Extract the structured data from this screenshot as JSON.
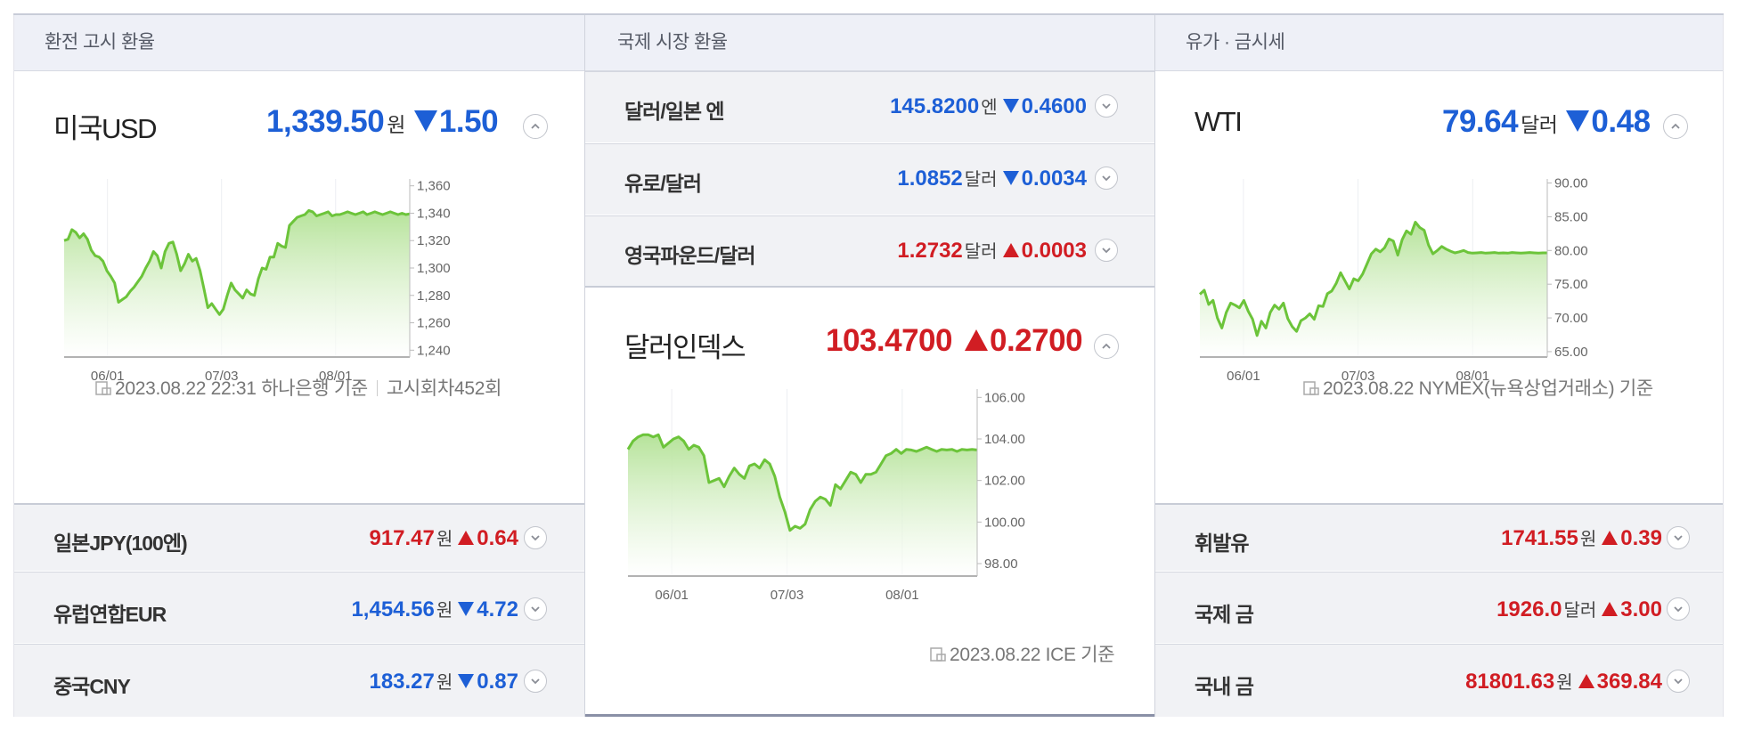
{
  "colors": {
    "up": "#d11d23",
    "down": "#1d5fd6",
    "line": "#6cc43a",
    "fill_top": "#b6e39a",
    "fill_bottom": "#ffffff"
  },
  "icons": {
    "expand": "chevron-up-icon",
    "collapse": "chevron-down-icon",
    "source": "document-icon"
  },
  "col1": {
    "header": "환전 고시 환율",
    "main": {
      "name": "미국USD",
      "price": "1,339.50",
      "unit": "원",
      "change": "1.50",
      "direction": "down"
    },
    "footnote": {
      "date": "2023.08.22 22:31 하나은행 기준",
      "extra": "고시회차452회"
    },
    "rows": [
      {
        "name": "일본JPY(100엔)",
        "price": "917.47",
        "unit": "원",
        "change": "0.64",
        "direction": "up"
      },
      {
        "name": "유럽연합EUR",
        "price": "1,454.56",
        "unit": "원",
        "change": "4.72",
        "direction": "down"
      },
      {
        "name": "중국CNY",
        "price": "183.27",
        "unit": "원",
        "change": "0.87",
        "direction": "down"
      }
    ]
  },
  "col2": {
    "header": "국제 시장 환율",
    "rows": [
      {
        "name": "달러/일본 엔",
        "price": "145.8200",
        "unit": "엔",
        "change": "0.4600",
        "direction": "down"
      },
      {
        "name": "유로/달러",
        "price": "1.0852",
        "unit": "달러",
        "change": "0.0034",
        "direction": "down"
      },
      {
        "name": "영국파운드/달러",
        "price": "1.2732",
        "unit": "달러",
        "change": "0.0003",
        "direction": "up"
      }
    ],
    "main": {
      "name": "달러인덱스",
      "price": "103.4700",
      "unit": "",
      "change": "0.2700",
      "direction": "up"
    },
    "footnote": {
      "date": "2023.08.22 ICE 기준"
    }
  },
  "col3": {
    "header": "유가 · 금시세",
    "main": {
      "name": "WTI",
      "price": "79.64",
      "unit": "달러",
      "change": "0.48",
      "direction": "down"
    },
    "footnote": {
      "date": "2023.08.22 NYMEX(뉴욕상업거래소) 기준"
    },
    "rows": [
      {
        "name": "휘발유",
        "price": "1741.55",
        "unit": "원",
        "change": "0.39",
        "direction": "up"
      },
      {
        "name": "국제 금",
        "price": "1926.0",
        "unit": "달러",
        "change": "3.00",
        "direction": "up"
      },
      {
        "name": "국내 금",
        "price": "81801.63",
        "unit": "원",
        "change": "369.84",
        "direction": "up"
      }
    ]
  },
  "chart_data": [
    {
      "type": "area",
      "series_of": "미국USD",
      "xticks": [
        "06/01",
        "07/03",
        "08/01"
      ],
      "yticks": [
        "1,360",
        "1,340",
        "1,320",
        "1,300",
        "1,280",
        "1,260",
        "1,240"
      ],
      "ylim": [
        1235,
        1365
      ],
      "x": [
        0,
        1,
        2,
        3,
        4,
        5,
        6,
        7,
        8,
        9,
        10,
        11,
        12,
        13,
        14,
        15,
        16,
        17,
        18,
        19,
        20,
        21,
        22,
        23,
        24,
        25,
        26,
        27,
        28,
        29,
        30,
        31,
        32,
        33,
        34,
        35,
        36,
        37,
        38,
        39,
        40,
        41,
        42,
        43,
        44,
        45,
        46,
        47,
        48,
        49,
        50,
        51,
        52,
        53,
        54,
        55,
        56,
        57,
        58,
        59,
        60,
        61,
        62,
        63,
        64,
        65,
        66,
        67,
        68,
        69,
        70,
        71,
        72,
        73,
        74,
        75,
        76,
        77,
        78,
        79,
        80,
        81,
        82,
        83,
        84,
        85,
        86,
        87,
        88,
        89
      ],
      "y": [
        1320,
        1321,
        1328,
        1326,
        1322,
        1325,
        1321,
        1313,
        1309,
        1308,
        1305,
        1298,
        1294,
        1289,
        1275,
        1277,
        1279,
        1283,
        1286,
        1290,
        1294,
        1300,
        1305,
        1312,
        1309,
        1300,
        1312,
        1318,
        1319,
        1310,
        1298,
        1303,
        1310,
        1305,
        1307,
        1298,
        1285,
        1271,
        1274,
        1270,
        1266,
        1270,
        1280,
        1289,
        1284,
        1281,
        1278,
        1284,
        1281,
        1280,
        1292,
        1300,
        1299,
        1308,
        1308,
        1318,
        1316,
        1315,
        1331,
        1334,
        1337,
        1338,
        1339,
        1342,
        1341,
        1338,
        1339,
        1340,
        1341,
        1338,
        1339,
        1339,
        1340,
        1341,
        1340,
        1339,
        1340,
        1341,
        1339,
        1340,
        1341,
        1340,
        1339,
        1340,
        1341,
        1340,
        1339,
        1340,
        1339,
        1339.5
      ]
    },
    {
      "type": "area",
      "series_of": "달러인덱스",
      "xticks": [
        "06/01",
        "07/03",
        "08/01"
      ],
      "yticks": [
        "106.00",
        "104.00",
        "102.00",
        "100.00",
        "98.00"
      ],
      "ylim": [
        97.4,
        106.4
      ],
      "x": [
        0,
        1,
        2,
        3,
        4,
        5,
        6,
        7,
        8,
        9,
        10,
        11,
        12,
        13,
        14,
        15,
        16,
        17,
        18,
        19,
        20,
        21,
        22,
        23,
        24,
        25,
        26,
        27,
        28,
        29,
        30,
        31,
        32,
        33,
        34,
        35,
        36,
        37,
        38,
        39,
        40,
        41,
        42,
        43,
        44,
        45,
        46,
        47,
        48,
        49,
        50,
        51,
        52,
        53,
        54,
        55,
        56,
        57,
        58,
        59,
        60,
        61,
        62,
        63,
        64,
        65,
        66,
        67,
        68,
        69
      ],
      "y": [
        103.5,
        103.9,
        104.1,
        104.2,
        104.2,
        104.1,
        104.2,
        103.6,
        103.8,
        104.0,
        104.1,
        103.9,
        103.5,
        103.7,
        103.6,
        103.2,
        101.9,
        102.0,
        102.1,
        101.7,
        102.2,
        102.6,
        102.3,
        102.1,
        102.7,
        102.8,
        102.6,
        103.0,
        102.8,
        102.2,
        101.2,
        100.5,
        99.6,
        99.8,
        99.7,
        99.9,
        100.6,
        101.0,
        101.2,
        101.1,
        100.8,
        101.8,
        101.6,
        102.0,
        102.4,
        102.3,
        101.9,
        102.3,
        102.3,
        102.4,
        102.8,
        103.2,
        103.3,
        103.5,
        103.3,
        103.5,
        103.47,
        103.4,
        103.5,
        103.6,
        103.5,
        103.4,
        103.5,
        103.47,
        103.5,
        103.4,
        103.5,
        103.47,
        103.5,
        103.47
      ]
    },
    {
      "type": "area",
      "series_of": "WTI",
      "xticks": [
        "06/01",
        "07/03",
        "08/01"
      ],
      "yticks": [
        "90.00",
        "85.00",
        "80.00",
        "75.00",
        "70.00",
        "65.00"
      ],
      "ylim": [
        64.2,
        90.6
      ],
      "x": [
        0,
        1,
        2,
        3,
        4,
        5,
        6,
        7,
        8,
        9,
        10,
        11,
        12,
        13,
        14,
        15,
        16,
        17,
        18,
        19,
        20,
        21,
        22,
        23,
        24,
        25,
        26,
        27,
        28,
        29,
        30,
        31,
        32,
        33,
        34,
        35,
        36,
        37,
        38,
        39,
        40,
        41,
        42,
        43,
        44,
        45,
        46,
        47,
        48,
        49,
        50,
        51,
        52,
        53,
        54,
        55,
        56,
        57,
        58,
        59,
        60,
        61,
        62,
        63,
        64,
        65,
        66,
        67,
        68,
        69,
        70,
        71,
        72,
        73,
        74,
        75,
        76,
        77,
        78,
        79
      ],
      "y": [
        73.5,
        74.1,
        72.0,
        72.6,
        70.0,
        68.5,
        70.8,
        72.2,
        71.9,
        71.5,
        72.6,
        71.0,
        69.8,
        67.4,
        69.5,
        68.5,
        70.8,
        71.9,
        71.3,
        72.2,
        69.9,
        68.7,
        68.0,
        69.6,
        70.0,
        70.6,
        69.8,
        71.8,
        71.7,
        73.6,
        74.0,
        75.1,
        76.7,
        75.5,
        74.3,
        75.8,
        75.5,
        76.5,
        78.0,
        79.5,
        80.2,
        79.8,
        80.4,
        81.7,
        81.4,
        79.3,
        81.6,
        82.9,
        82.4,
        84.2,
        83.4,
        83.0,
        80.8,
        79.5,
        80.0,
        80.6,
        80.2,
        79.9,
        79.64,
        79.8,
        80.0,
        79.7,
        79.6,
        79.64,
        79.7,
        79.6,
        79.64,
        79.7,
        79.6,
        79.64,
        79.6,
        79.7,
        79.64,
        79.6,
        79.64,
        79.7,
        79.64,
        79.6,
        79.64,
        79.64
      ]
    }
  ]
}
